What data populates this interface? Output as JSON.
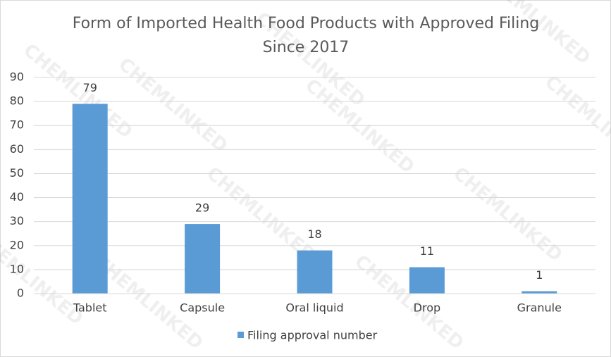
{
  "chart_data": {
    "type": "bar",
    "title": [
      "Form of Imported Health Food Products with Approved Filing",
      "Since 2017"
    ],
    "categories": [
      "Tablet",
      "Capsule",
      "Oral liquid",
      "Drop",
      "Granule"
    ],
    "series": [
      {
        "name": "Filing approval number",
        "color": "#5b9bd5",
        "values": [
          79,
          29,
          18,
          11,
          1
        ]
      }
    ],
    "ylim": [
      0,
      90
    ],
    "yticks": [
      0,
      10,
      20,
      30,
      40,
      50,
      60,
      70,
      80,
      90
    ],
    "grid": true,
    "legend": "bottom",
    "data_labels": true,
    "watermark": "CHEMLINKED"
  }
}
